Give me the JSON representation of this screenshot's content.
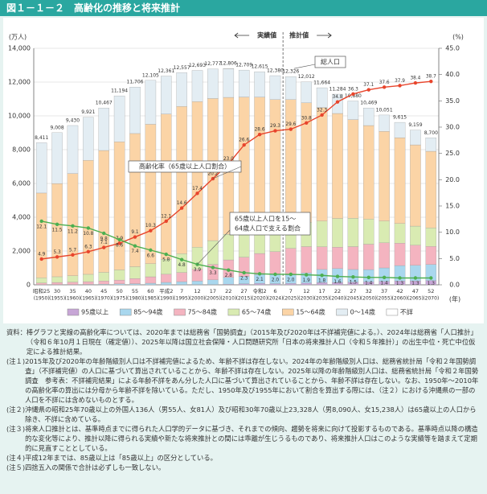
{
  "header": {
    "title": "図１－１－２　高齢化の推移と将来推計"
  },
  "chart_data": {
    "type": "bar",
    "y_unit": "(万人)",
    "y2_unit": "(%)",
    "x_unit": "(年)",
    "actual_label": "実績値",
    "estimate_label": "推計値",
    "categories": [
      "(1950)",
      "(1955)",
      "(1960)",
      "(1965)",
      "(1970)",
      "(1975)",
      "(1980)",
      "(1985)",
      "(1990)",
      "(1995)",
      "(2000)",
      "(2005)",
      "(2010)",
      "(2015)",
      "(2020)",
      "(2024)",
      "(2025)",
      "(2030)",
      "(2035)",
      "(2040)",
      "(2045)",
      "(2050)",
      "(2055)",
      "(2060)",
      "(2065)",
      "(2070)"
    ],
    "era_labels": [
      "昭和25",
      "30",
      "35",
      "40",
      "45",
      "50",
      "55",
      "60",
      "平成2",
      "7",
      "12",
      "17",
      "22",
      "27",
      "令和2",
      "6",
      "7",
      "12",
      "17",
      "22",
      "27",
      "32",
      "37",
      "42",
      "47",
      "52"
    ],
    "ylim": [
      0,
      14000
    ],
    "yticks": [
      0,
      {
        "value": 2000,
        "label": "2,000"
      },
      {
        "value": 4000,
        "label": "4,000"
      },
      {
        "value": 6000,
        "label": "6,000"
      },
      {
        "value": 8000,
        "label": "8,000"
      },
      {
        "value": 10000,
        "label": "10,000"
      },
      {
        "value": 12000,
        "label": "12,000"
      },
      {
        "value": 14000,
        "label": "14,000"
      }
    ],
    "y2lim": [
      0,
      45
    ],
    "y2ticks": [
      {
        "value": 0,
        "label": "0.0"
      },
      {
        "value": 5,
        "label": "5.0"
      },
      {
        "value": 10,
        "label": "10.0"
      },
      {
        "value": 15,
        "label": "15.0"
      },
      {
        "value": 20,
        "label": "20.0"
      },
      {
        "value": 25,
        "label": "25.0"
      },
      {
        "value": 30,
        "label": "30.0"
      },
      {
        "value": 35,
        "label": "35.0"
      },
      {
        "value": 40,
        "label": "40.0"
      },
      {
        "value": 45,
        "label": "45.0"
      }
    ],
    "series": [
      {
        "name": "95歳以上",
        "color": "#c7a6d6",
        "values": [
          0,
          0,
          0,
          0,
          1,
          1,
          1,
          1,
          3,
          8,
          12,
          16,
          38,
          62,
          80,
          68,
          80,
          103,
          132,
          143,
          162,
          175,
          200,
          222,
          233,
          248
        ]
      },
      {
        "name": "85～94歳",
        "color": "#a9d7ee",
        "values": [
          9,
          14,
          17,
          24,
          36,
          56,
          66,
          93,
          140,
          178,
          208,
          277,
          400,
          435,
          527,
          545,
          513,
          604,
          777,
          818,
          745,
          726,
          800,
          918,
          921,
          958
        ]
      },
      {
        "name": "75～84歳",
        "color": "#f4b4c0",
        "values": [
          97,
          126,
          143,
          163,
          187,
          223,
          306,
          381,
          482,
          543,
          700,
          916,
          1036,
          1137,
          1247,
          1353,
          1563,
          1554,
          1342,
          1267,
          1353,
          1502,
          1484,
          1324,
          1188,
          1063
        ]
      },
      {
        "name": "65～74歳",
        "color": "#d9ebb2",
        "values": [
          309,
          338,
          379,
          434,
          516,
          602,
          699,
          776,
          892,
          1109,
          1301,
          1407,
          1517,
          1752,
          1747,
          1624,
          1497,
          1435,
          1522,
          1701,
          1685,
          1485,
          1294,
          1166,
          1132,
          1099
        ]
      },
      {
        "name": "15～64歳",
        "color": "#fbd4a6",
        "values": [
          5017,
          5517,
          6047,
          6744,
          7212,
          7581,
          7883,
          8251,
          8590,
          8716,
          8622,
          8409,
          8103,
          7728,
          7509,
          7373,
          7310,
          7076,
          6722,
          6213,
          5832,
          5540,
          5307,
          5078,
          4809,
          4535
        ]
      },
      {
        "name": "0～14歳",
        "color": "#e3edf3",
        "values": [
          2979,
          3012,
          2843,
          2553,
          2515,
          2722,
          2751,
          2603,
          2249,
          2001,
          1847,
          1752,
          1680,
          1595,
          1503,
          1417,
          1363,
          1240,
          1169,
          1142,
          1103,
          1041,
          966,
          907,
          876,
          797
        ]
      },
      {
        "name": "不詳",
        "color": "#ffffff",
        "values": [
          0,
          0,
          0,
          0,
          0,
          0,
          0,
          0,
          0,
          0,
          0,
          0,
          32,
          0,
          0,
          0,
          0,
          0,
          0,
          0,
          0,
          0,
          0,
          0,
          0,
          0
        ]
      }
    ],
    "totals": {
      "name": "総人口",
      "values": [
        8411,
        9008,
        9430,
        9921,
        10467,
        11194,
        11706,
        12105,
        12361,
        12557,
        12693,
        12777,
        12806,
        12709,
        12615,
        12380,
        12326,
        12012,
        11664,
        11284,
        10880,
        10469,
        10051,
        9615,
        9159,
        8700
      ],
      "value_labels": [
        "8,411",
        "9,008",
        "9,430",
        "9,921",
        "10,467",
        "11,194",
        "11,706",
        "12,105",
        "12,361",
        "12,557",
        "12,693",
        "12,777",
        "12,806",
        "12,709",
        "12,615",
        "12,380",
        "12,326",
        "12,012",
        "11,664",
        "11,284",
        "10,880",
        "10,469",
        "10,051",
        "9,615",
        "9,159",
        "8,700"
      ]
    },
    "lines": [
      {
        "name": "高齢化率（65歳以上人口割合）",
        "color": "#e8452c",
        "axis": "y2",
        "values": [
          4.9,
          5.3,
          5.7,
          6.3,
          7.1,
          7.9,
          9.1,
          10.3,
          12.1,
          14.6,
          17.4,
          20.2,
          23.0,
          26.6,
          28.6,
          29.3,
          29.6,
          30.8,
          32.3,
          34.8,
          36.3,
          37.1,
          37.6,
          37.9,
          38.4,
          38.7
        ],
        "value_labels": [
          "4.9",
          "5.3",
          "5.7",
          "6.3",
          "7.1",
          "7.9",
          "9.1",
          "10.3",
          "12.1",
          "14.6",
          "17.4",
          "20.2",
          "23.0",
          "26.6",
          "28.6",
          "29.3",
          "29.6",
          "30.8",
          "32.3",
          "34.8",
          "36.3",
          "37.1",
          "37.6",
          "37.9",
          "38.4",
          "38.7"
        ]
      },
      {
        "name_lines": [
          "65歳以上人口を15～",
          "64歳人口で支える割合"
        ],
        "color": "#4caf50",
        "axis": "y2",
        "values": [
          12.1,
          11.5,
          11.2,
          10.8,
          9.8,
          8.6,
          7.4,
          6.6,
          5.8,
          4.8,
          3.9,
          3.3,
          2.8,
          2.3,
          2.1,
          2.0,
          2.0,
          1.9,
          1.8,
          1.6,
          1.5,
          1.4,
          1.4,
          1.3,
          1.3,
          1.3
        ],
        "value_labels": [
          "12.1",
          "11.5",
          "11.2",
          "10.8",
          "9.8",
          "8.6",
          "7.4",
          "6.6",
          "5.8",
          "4.8",
          "3.9",
          "3.3",
          "2.8",
          "2.3",
          "2.1",
          "2.0",
          "2.0",
          "1.9",
          "1.8",
          "1.6",
          "1.5",
          "1.4",
          "1.4",
          "1.3",
          "1.3",
          "1.3"
        ]
      }
    ]
  },
  "notes": [
    {
      "head": "資料：",
      "text": "棒グラフと実線の高齢化率については、2020年までは総務省「国勢調査」（2015年及び2020年は不詳補完値による。）、2024年は総務省「人口推計」（令和６年10月１日現在（確定値））、2025年以降は国立社会保障・人口問題研究所「日本の将来推計人口（令和５年推計）」の出生中位・死亡中位仮定による推計結果。"
    },
    {
      "head": "(注１)",
      "text": "2015年及び2020年の年齢階級別人口は不詳補完値によるため、年齢不詳は存在しない。2024年の年齢階級別人口は、総務省統計局「令和２年国勢調査」（不詳補完値）の人口に基づいて算出されていることから、年齢不詳は存在しない。2025年以降の年齢階級別人口は、総務省統計局「令和２年国勢調査　参考表：不詳補完結果」による年齢不詳をあん分した人口に基づいて算出されていることから、年齢不詳は存在しない。なお、1950年～2010年の高齢化率の算出には分母から年齢不詳を除いている。ただし、1950年及び1955年において割合を算出する際には、（注２）における沖縄県の一部の人口を不詳には含めないものとする。"
    },
    {
      "head": "(注２)",
      "text": "沖縄県の昭和25年70歳以上の外国人136人（男55人、女81人）及び昭和30年70歳以上23,328人（男8,090人、女15,238人）は65歳以上の人口から除き、不詳に含めている。"
    },
    {
      "head": "(注３)",
      "text": "将来人口推計とは、基準時点までに得られた人口学的データに基づき、それまでの傾向、趨勢を将来に向けて投影するものである。基準時点以降の構造的な変化等により、推計以降に得られる実績や新たな将来推計との間には乖離が生じうるものであり、将来推計人口はこのような実績等を踏まえて定期的に見直すこととしている。"
    },
    {
      "head": "(注４)",
      "text": "平成12年までは、85歳以上は「85歳以上」の区分としている。"
    },
    {
      "head": "(注５)",
      "text": "四捨五入の関係で合計は必ずしも一致しない。"
    }
  ]
}
